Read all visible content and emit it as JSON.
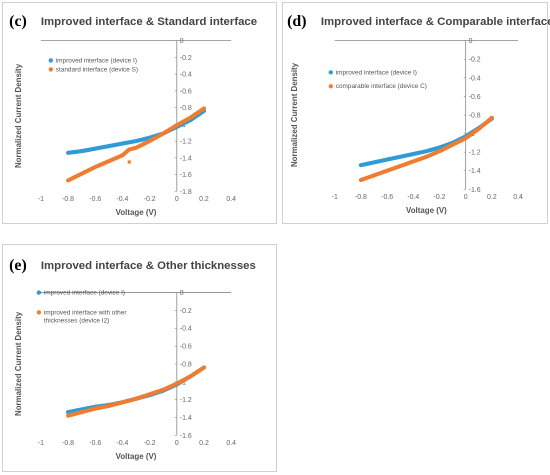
{
  "colors": {
    "series_a": "#2f9bd7",
    "series_b": "#ef7d31",
    "axis": "#888888",
    "text": "#555555"
  },
  "chart_data": [
    {
      "type": "scatter",
      "panel_label": "(c)",
      "title": "Improved interface & Standard interface",
      "xlabel": "Voltage (V)",
      "ylabel": "Normalized Current Density",
      "xlim": [
        -1,
        0.4
      ],
      "ylim": [
        -1.8,
        0
      ],
      "xticks": [
        "-1",
        "-0.8",
        "-0.6",
        "-0.4",
        "-0.2",
        "0",
        "0.2",
        "0.4"
      ],
      "yticks": [
        "0",
        "-0.2",
        "-0.4",
        "-0.6",
        "-0.8",
        "-1",
        "-1.2",
        "-1.4",
        "-1.6",
        "-1.8"
      ],
      "grid": false,
      "legend_position": "top-left",
      "series": [
        {
          "name": "improved interface (device I)",
          "color": "#2f9bd7",
          "x": [
            -0.8,
            -0.7,
            -0.6,
            -0.5,
            -0.4,
            -0.3,
            -0.2,
            -0.1,
            0,
            0.1,
            0.2
          ],
          "y": [
            -1.34,
            -1.32,
            -1.29,
            -1.26,
            -1.23,
            -1.2,
            -1.16,
            -1.11,
            -1.03,
            -0.95,
            -0.84
          ]
        },
        {
          "name": "standard interface (device S)",
          "color": "#ef7d31",
          "x": [
            -0.8,
            -0.7,
            -0.6,
            -0.5,
            -0.4,
            -0.35,
            -0.3,
            -0.2,
            -0.1,
            0,
            0.1,
            0.2
          ],
          "y": [
            -1.67,
            -1.59,
            -1.51,
            -1.44,
            -1.37,
            -1.3,
            -1.28,
            -1.2,
            -1.11,
            -1.01,
            -0.92,
            -0.81
          ]
        }
      ],
      "outliers": [
        {
          "series": "standard interface (device S)",
          "x": -0.35,
          "y": -1.45
        }
      ]
    },
    {
      "type": "scatter",
      "panel_label": "(d)",
      "title": "Improved interface & Comparable interface",
      "xlabel": "Voltage (V)",
      "ylabel": "Normalized Current Density",
      "xlim": [
        -1,
        0.4
      ],
      "ylim": [
        -1.6,
        0
      ],
      "xticks": [
        "-1",
        "-0.8",
        "-0.6",
        "-0.4",
        "-0.2",
        "0",
        "0.2",
        "0.4"
      ],
      "yticks": [
        "0",
        "-0.2",
        "-0.4",
        "-0.6",
        "-0.8",
        "-1",
        "-1.2",
        "-1.4",
        "-1.6"
      ],
      "grid": false,
      "legend_position": "top-left",
      "series": [
        {
          "name": "improved interface (device I)",
          "color": "#2f9bd7",
          "x": [
            -0.8,
            -0.7,
            -0.6,
            -0.5,
            -0.4,
            -0.3,
            -0.2,
            -0.1,
            0,
            0.1,
            0.2
          ],
          "y": [
            -1.34,
            -1.31,
            -1.28,
            -1.25,
            -1.22,
            -1.19,
            -1.15,
            -1.1,
            -1.03,
            -0.94,
            -0.84
          ]
        },
        {
          "name": "comparable interface (device C)",
          "color": "#ef7d31",
          "x": [
            -0.8,
            -0.7,
            -0.6,
            -0.5,
            -0.4,
            -0.3,
            -0.2,
            -0.1,
            0,
            0.1,
            0.2
          ],
          "y": [
            -1.5,
            -1.45,
            -1.4,
            -1.35,
            -1.3,
            -1.25,
            -1.19,
            -1.12,
            -1.05,
            -0.95,
            -0.83
          ]
        }
      ]
    },
    {
      "type": "scatter",
      "panel_label": "(e)",
      "title": "Improved interface  &  Other thicknesses",
      "xlabel": "Voltage (V)",
      "ylabel": "Normalized Current Density",
      "xlim": [
        -1,
        0.4
      ],
      "ylim": [
        -1.6,
        0
      ],
      "xticks": [
        "-1",
        "-0.8",
        "-0.6",
        "-0.4",
        "-0.2",
        "0",
        "0.2",
        "0.4"
      ],
      "yticks": [
        "0",
        "-0.2",
        "-0.4",
        "-0.6",
        "-0.8",
        "-1",
        "-1.2",
        "-1.4",
        "-1.6"
      ],
      "grid": false,
      "legend_position": "top-left",
      "series": [
        {
          "name": "improved interface (device I)",
          "color": "#2f9bd7",
          "x": [
            -0.8,
            -0.7,
            -0.6,
            -0.5,
            -0.4,
            -0.3,
            -0.2,
            -0.1,
            0,
            0.1,
            0.2
          ],
          "y": [
            -1.34,
            -1.31,
            -1.28,
            -1.26,
            -1.23,
            -1.19,
            -1.15,
            -1.1,
            -1.03,
            -0.94,
            -0.84
          ]
        },
        {
          "name": "improved interface with other thicknesses (device I2)",
          "color": "#ef7d31",
          "x": [
            -0.8,
            -0.7,
            -0.6,
            -0.5,
            -0.4,
            -0.3,
            -0.2,
            -0.1,
            0,
            0.1,
            0.2
          ],
          "y": [
            -1.38,
            -1.34,
            -1.3,
            -1.27,
            -1.23,
            -1.19,
            -1.14,
            -1.09,
            -1.02,
            -0.94,
            -0.84
          ]
        }
      ]
    }
  ]
}
